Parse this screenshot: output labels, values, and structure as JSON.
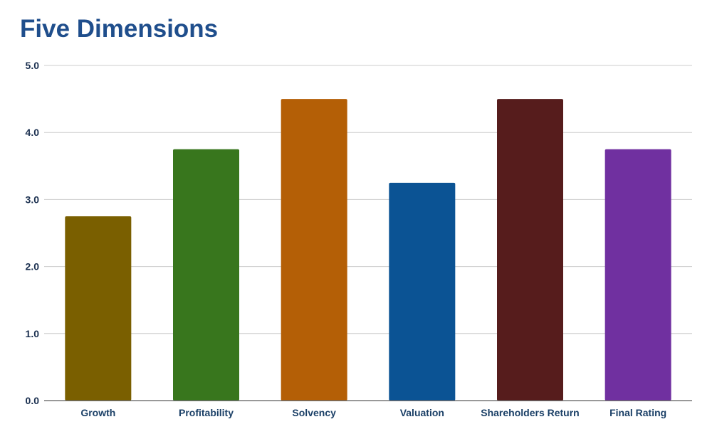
{
  "chart_data": {
    "type": "bar",
    "title": "Five Dimensions",
    "categories": [
      "Growth",
      "Profitability",
      "Solvency",
      "Valuation",
      "Shareholders Return",
      "Final Rating"
    ],
    "values": [
      2.75,
      3.75,
      4.5,
      3.25,
      4.5,
      3.75
    ],
    "colors": [
      "#7a5f00",
      "#38761d",
      "#b45f06",
      "#0b5394",
      "#561c1c",
      "#7030a0"
    ],
    "ylim": [
      0,
      5
    ],
    "yticks": [
      "0.0",
      "1.0",
      "2.0",
      "3.0",
      "4.0",
      "5.0"
    ],
    "grid": true,
    "legend": "none",
    "xlabel": "",
    "ylabel": ""
  }
}
